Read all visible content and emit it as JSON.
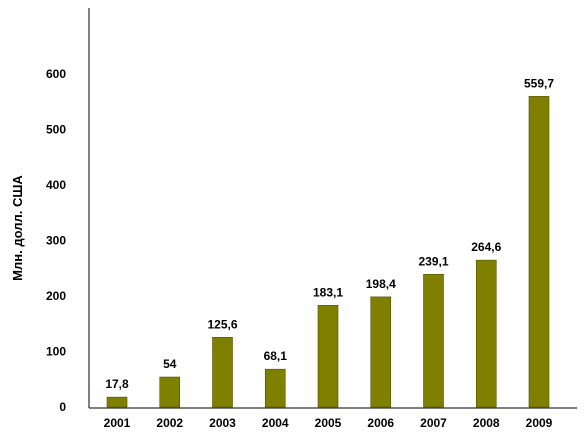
{
  "chart_data": {
    "type": "bar",
    "categories": [
      "2001",
      "2002",
      "2003",
      "2004",
      "2005",
      "2006",
      "2007",
      "2008",
      "2009"
    ],
    "values": [
      17.8,
      54,
      125.6,
      68.1,
      183.1,
      198.4,
      239.1,
      264.6,
      559.7
    ],
    "value_labels": [
      "17,8",
      "54",
      "125,6",
      "68,1",
      "183,1",
      "198,4",
      "239,1",
      "264,6",
      "559,7"
    ],
    "ylabel": "Млн. долл. США",
    "yticks": [
      "0",
      "100",
      "200",
      "300",
      "400",
      "500",
      "600"
    ],
    "ylim": [
      0,
      600
    ],
    "grid": false,
    "bar_color": "#808000",
    "bar_edge_color": "#505000"
  }
}
